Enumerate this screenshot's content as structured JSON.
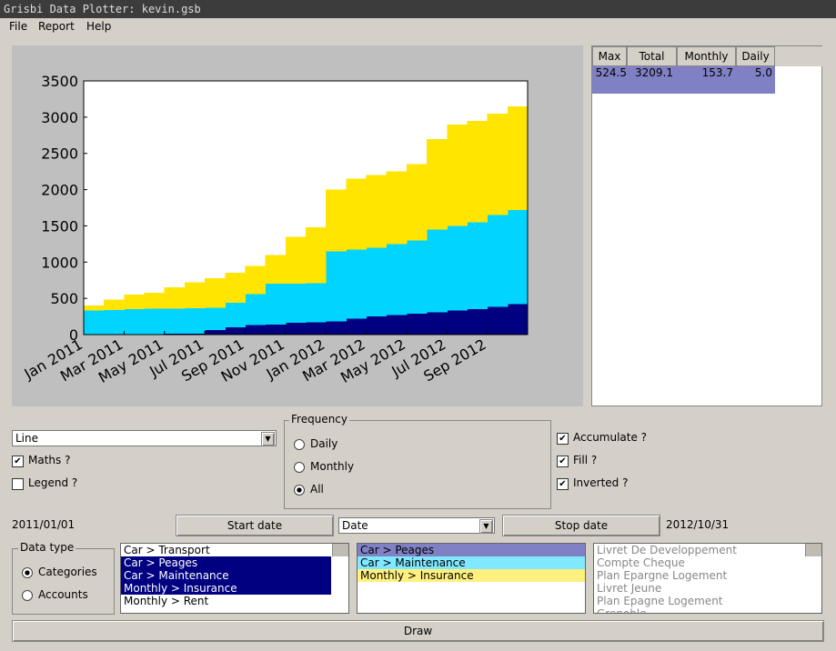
{
  "window": {
    "title": "Grisbi Data Plotter: kevin.gsb"
  },
  "menu": [
    "File",
    "Report",
    "Help"
  ],
  "chart_data": {
    "type": "stacked-step-area",
    "categories": [
      "Jan 2011",
      null,
      "Mar 2011",
      null,
      "May 2011",
      null,
      "Jul 2011",
      null,
      "Sep 2011",
      null,
      "Nov 2011",
      null,
      "Jan 2012",
      null,
      "Mar 2012",
      null,
      "May 2012",
      null,
      "Jul 2012",
      null,
      "Sep 2012",
      null
    ],
    "series": [
      {
        "name": "Car > Peages",
        "color": "#000080",
        "values": [
          0,
          0,
          5,
          5,
          10,
          15,
          60,
          100,
          130,
          140,
          160,
          170,
          180,
          220,
          250,
          270,
          290,
          310,
          330,
          350,
          380,
          420
        ]
      },
      {
        "name": "Car > Maintenance",
        "color": "#00d4ff",
        "values": [
          330,
          340,
          345,
          350,
          350,
          350,
          310,
          340,
          430,
          560,
          540,
          540,
          970,
          950,
          950,
          980,
          1010,
          1140,
          1170,
          1200,
          1270,
          1300
        ]
      },
      {
        "name": "Monthly > Insurance",
        "color": "#ffe500",
        "values": [
          70,
          140,
          200,
          225,
          290,
          355,
          410,
          410,
          390,
          400,
          650,
          770,
          850,
          980,
          1000,
          1000,
          1050,
          1250,
          1400,
          1400,
          1400,
          1430
        ]
      }
    ],
    "ylim": [
      0,
      3500
    ],
    "yticks": [
      0,
      500,
      1000,
      1500,
      2000,
      2500,
      3000,
      3500
    ]
  },
  "table": {
    "headers": [
      "Max",
      "Total",
      "Monthly",
      "Daily"
    ],
    "rows": [
      [
        "524.5",
        "3209.1",
        "153.7",
        "5.0"
      ]
    ]
  },
  "controls": {
    "plot_type": "Line",
    "maths": "Maths ?",
    "legend": "Legend ?",
    "frequency": {
      "title": "Frequency",
      "options": [
        "Daily",
        "Monthly",
        "All"
      ]
    },
    "accumulate": "Accumulate ?",
    "fill": "Fill ?",
    "inverted": "Inverted ?",
    "start_value": "2011/01/01",
    "start_button": "Start date",
    "date_field": "Date",
    "stop_button": "Stop date",
    "stop_value": "2012/10/31",
    "data_type": {
      "title": "Data type",
      "options": [
        "Categories",
        "Accounts"
      ]
    },
    "categories_list": [
      "Car > Transport",
      "Car > Peages",
      "Car > Maintenance",
      "Monthly > Insurance",
      "Monthly > Rent"
    ],
    "accounts_list": [
      "Livret De Developpement",
      "Compte Cheque",
      "Plan Epargne Logement",
      "Livret Jeune",
      "Plan Epagne Logement",
      "Grenoble"
    ],
    "draw": "Draw"
  }
}
